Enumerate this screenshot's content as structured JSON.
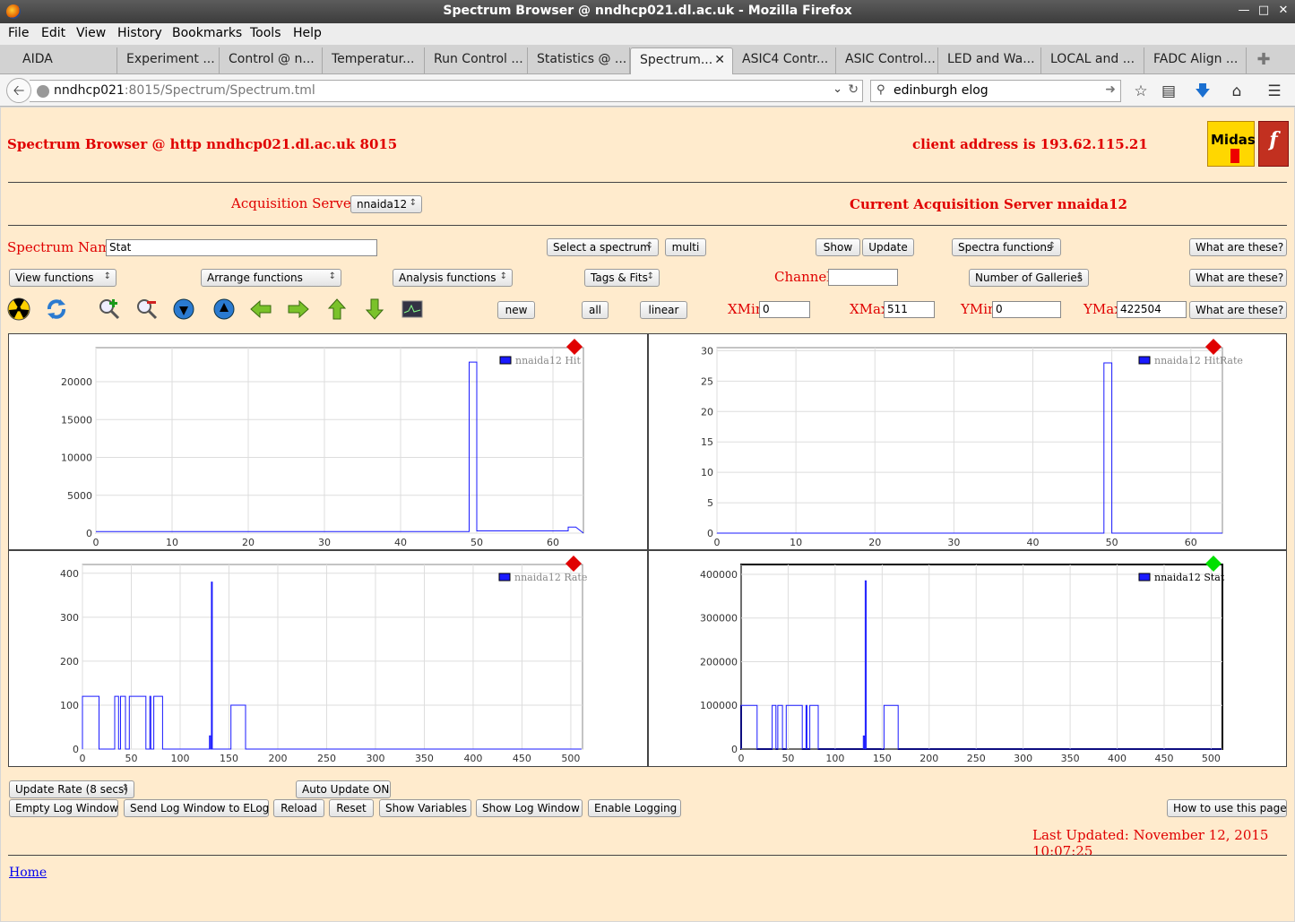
{
  "window": {
    "title": "Spectrum Browser @ nndhcp021.dl.ac.uk - Mozilla Firefox"
  },
  "menu": [
    "File",
    "Edit",
    "View",
    "History",
    "Bookmarks",
    "Tools",
    "Help"
  ],
  "tabs": [
    "AIDA",
    "Experiment ...",
    "Control @ n...",
    "Temperatur...",
    "Run Control ...",
    "Statistics @ ...",
    "Spectrum...",
    "ASIC4 Contr...",
    "ASIC Control...",
    "LED and Wa...",
    "LOCAL and ...",
    "FADC Align ..."
  ],
  "active_tab_index": 6,
  "nav": {
    "url_host": "nndhcp021",
    "url_rest": ":8015/Spectrum/Spectrum.tml",
    "search_value": "edinburgh elog"
  },
  "header": {
    "title": "Spectrum Browser @ http nndhcp021.dl.ac.uk 8015",
    "client": "client address is 193.62.115.21",
    "midas_logo": "Midas",
    "tcl_logo": "f"
  },
  "acq": {
    "label": "Acquisition Servers",
    "selected": "nnaida12",
    "current": "Current Acquisition Server nnaida12"
  },
  "spectrum": {
    "name_label": "Spectrum Name:",
    "name_value": "Stat",
    "select_label": "Select a spectrum",
    "multi": "multi",
    "show": "Show",
    "update": "Update",
    "spectra_functions": "Spectra functions",
    "what1": "What are these?"
  },
  "functions": {
    "view": "View functions",
    "arrange": "Arrange functions",
    "analysis": "Analysis functions",
    "tags": "Tags & Fits",
    "channel_label": "Channel:",
    "channel_value": "",
    "galleries": "Number of Galleries",
    "what2": "What are these?"
  },
  "range": {
    "new": "new",
    "all": "all",
    "linear": "linear",
    "xmin_label": "XMin",
    "xmin": "0",
    "xmax_label": "XMax",
    "xmax": "511",
    "ymin_label": "YMin",
    "ymin": "0",
    "ymax_label": "YMax",
    "ymax": "422504",
    "what3": "What are these?"
  },
  "icons": [
    "radiation-icon",
    "refresh-icon",
    "zoom-in-icon",
    "zoom-out-icon",
    "down-blue-icon",
    "up-blue-icon",
    "arrow-left-icon",
    "arrow-right-icon",
    "arrow-up-icon",
    "arrow-down-icon",
    "screen-icon"
  ],
  "chart_data": [
    {
      "type": "line",
      "legend": "nnaida12 Hit",
      "marker": "#e00000",
      "xticks": [
        "0",
        "10",
        "20",
        "30",
        "40",
        "50",
        "60"
      ],
      "xlim": [
        0,
        64
      ],
      "yticks": [
        "0",
        "5000",
        "10000",
        "15000",
        "20000"
      ],
      "ylim": [
        0,
        24500
      ],
      "x": [
        0,
        49,
        49,
        50,
        50,
        62,
        62,
        63,
        64
      ],
      "y": [
        200,
        200,
        22600,
        22600,
        300,
        300,
        800,
        800,
        0
      ]
    },
    {
      "type": "line",
      "legend": "nnaida12 HitRate",
      "marker": "#e00000",
      "xticks": [
        "0",
        "10",
        "20",
        "30",
        "40",
        "50",
        "60"
      ],
      "xlim": [
        0,
        64
      ],
      "yticks": [
        "0",
        "5",
        "10",
        "15",
        "20",
        "25",
        "30"
      ],
      "ylim": [
        0,
        30.5
      ],
      "x": [
        0,
        49,
        49,
        50,
        50,
        64
      ],
      "y": [
        0,
        0,
        28,
        28,
        0,
        0
      ]
    },
    {
      "type": "line",
      "legend": "nnaida12 Rate",
      "marker": "#e00000",
      "xticks": [
        "0",
        "50",
        "100",
        "150",
        "200",
        "250",
        "300",
        "350",
        "400",
        "450",
        "500"
      ],
      "xlim": [
        0,
        512
      ],
      "yticks": [
        "0",
        "100",
        "200",
        "300",
        "400"
      ],
      "ylim": [
        0,
        420
      ],
      "x": [
        0,
        0,
        17,
        17,
        33,
        33,
        37,
        37,
        39,
        39,
        44,
        44,
        48,
        48,
        65,
        65,
        69,
        69,
        70,
        70,
        73,
        73,
        82,
        82,
        130,
        130,
        131,
        131,
        132,
        132,
        133,
        133,
        152,
        152,
        167,
        167,
        511
      ],
      "y": [
        0,
        120,
        120,
        0,
        0,
        120,
        120,
        0,
        0,
        120,
        120,
        0,
        0,
        120,
        120,
        0,
        0,
        120,
        120,
        0,
        0,
        120,
        120,
        0,
        0,
        30,
        30,
        0,
        0,
        380,
        380,
        0,
        0,
        100,
        100,
        0,
        0
      ]
    },
    {
      "type": "line",
      "legend": "nnaida12 Stat",
      "marker": "#00e000",
      "xticks": [
        "0",
        "50",
        "100",
        "150",
        "200",
        "250",
        "300",
        "350",
        "400",
        "450",
        "500"
      ],
      "xlim": [
        0,
        512
      ],
      "yticks": [
        "0",
        "100000",
        "200000",
        "300000",
        "400000"
      ],
      "ylim": [
        0,
        422504
      ],
      "x": [
        0,
        0,
        17,
        17,
        33,
        33,
        37,
        37,
        39,
        39,
        44,
        44,
        48,
        48,
        65,
        65,
        69,
        69,
        70,
        70,
        73,
        73,
        82,
        82,
        130,
        130,
        131,
        131,
        132,
        132,
        133,
        133,
        152,
        152,
        167,
        167,
        511
      ],
      "y": [
        0,
        100000,
        100000,
        0,
        0,
        100000,
        100000,
        0,
        0,
        100000,
        100000,
        0,
        0,
        100000,
        100000,
        0,
        0,
        100000,
        100000,
        0,
        0,
        100000,
        100000,
        0,
        0,
        30000,
        30000,
        0,
        0,
        385000,
        385000,
        0,
        0,
        100000,
        100000,
        0,
        0
      ]
    }
  ],
  "footer": {
    "update_rate": "Update Rate (8 secs)",
    "auto_update": "Auto Update ON",
    "empty_log": "Empty Log Window",
    "send_log": "Send Log Window to ELog",
    "reload": "Reload",
    "reset": "Reset",
    "show_vars": "Show Variables",
    "show_log": "Show Log Window",
    "enable_logging": "Enable Logging",
    "how_to": "How to use this page",
    "last_updated": "Last Updated: November 12, 2015 10:07:25",
    "home": "Home"
  }
}
